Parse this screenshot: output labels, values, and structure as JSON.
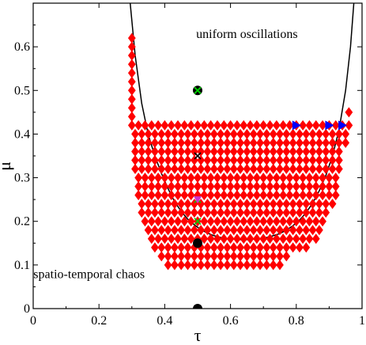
{
  "chart_data": {
    "type": "scatter",
    "title": "",
    "xlabel": "τ",
    "ylabel": "μ",
    "xlim": [
      0,
      1
    ],
    "ylim": [
      0,
      0.7
    ],
    "xticks": [
      0,
      0.2,
      0.4,
      0.6,
      0.8,
      1
    ],
    "xtick_labels": [
      "0",
      "0.2",
      "0.4",
      "0.6",
      "0.8",
      "1"
    ],
    "yticks": [
      0,
      0.1,
      0.2,
      0.3,
      0.4,
      0.5,
      0.6
    ],
    "ytick_labels": [
      "0",
      "0.1",
      "0.2",
      "0.3",
      "0.4",
      "0.5",
      "0.6"
    ],
    "grid": false,
    "annotations": [
      {
        "text": "uniform oscillations",
        "x": 0.65,
        "y": 0.62
      },
      {
        "text": "spatio-temporal chaos",
        "x": 0.17,
        "y": 0.07
      }
    ],
    "boundary": {
      "color": "#000000",
      "x": [
        0.295,
        0.31,
        0.33,
        0.35,
        0.37,
        0.39,
        0.41,
        0.43,
        0.45,
        0.47,
        0.49,
        0.51,
        0.53,
        0.55,
        0.57,
        0.59,
        0.61,
        0.63,
        0.65,
        0.67,
        0.69,
        0.71,
        0.73,
        0.75,
        0.77,
        0.79,
        0.81,
        0.83,
        0.85,
        0.87,
        0.89,
        0.91,
        0.93,
        0.95,
        0.965,
        0.975
      ],
      "y": [
        0.7,
        0.58,
        0.47,
        0.398,
        0.35,
        0.31,
        0.275,
        0.245,
        0.223,
        0.205,
        0.192,
        0.181,
        0.173,
        0.167,
        0.163,
        0.16,
        0.159,
        0.158,
        0.158,
        0.159,
        0.16,
        0.163,
        0.167,
        0.172,
        0.18,
        0.19,
        0.203,
        0.22,
        0.242,
        0.27,
        0.305,
        0.35,
        0.41,
        0.5,
        0.6,
        0.7
      ]
    },
    "series": [
      {
        "marker": "diamond",
        "color": "#ff0000",
        "rows": [
          {
            "y": 0.1,
            "x_from": 0.41,
            "x_to": 0.75
          },
          {
            "y": 0.12,
            "x_from": 0.39,
            "x_to": 0.78
          },
          {
            "y": 0.14,
            "x_from": 0.37,
            "x_to": 0.84
          },
          {
            "y": 0.16,
            "x_from": 0.36,
            "x_to": 0.86
          },
          {
            "y": 0.18,
            "x_from": 0.35,
            "x_to": 0.88
          },
          {
            "y": 0.2,
            "x_from": 0.34,
            "x_to": 0.89
          },
          {
            "y": 0.22,
            "x_from": 0.33,
            "x_to": 0.9
          },
          {
            "y": 0.24,
            "x_from": 0.33,
            "x_to": 0.91
          },
          {
            "y": 0.26,
            "x_from": 0.32,
            "x_to": 0.92
          },
          {
            "y": 0.28,
            "x_from": 0.32,
            "x_to": 0.93
          },
          {
            "y": 0.3,
            "x_from": 0.32,
            "x_to": 0.93
          },
          {
            "y": 0.32,
            "x_from": 0.31,
            "x_to": 0.93
          },
          {
            "y": 0.34,
            "x_from": 0.31,
            "x_to": 0.94
          },
          {
            "y": 0.36,
            "x_from": 0.31,
            "x_to": 0.94
          },
          {
            "y": 0.38,
            "x_from": 0.31,
            "x_to": 0.95
          },
          {
            "y": 0.4,
            "x_from": 0.31,
            "x_to": 0.95
          },
          {
            "y": 0.42,
            "x_from": 0.3,
            "x_to": 0.96
          },
          {
            "y": 0.44,
            "x_from": 0.3,
            "x_to": 0.3
          },
          {
            "y": 0.45,
            "x_from": 0.96,
            "x_to": 0.96
          },
          {
            "y": 0.46,
            "x_from": 0.3,
            "x_to": 0.3
          },
          {
            "y": 0.48,
            "x_from": 0.3,
            "x_to": 0.3
          },
          {
            "y": 0.5,
            "x_from": 0.3,
            "x_to": 0.3
          },
          {
            "y": 0.52,
            "x_from": 0.3,
            "x_to": 0.3
          },
          {
            "y": 0.54,
            "x_from": 0.3,
            "x_to": 0.3
          },
          {
            "y": 0.56,
            "x_from": 0.3,
            "x_to": 0.3
          },
          {
            "y": 0.58,
            "x_from": 0.3,
            "x_to": 0.3
          },
          {
            "y": 0.6,
            "x_from": 0.3,
            "x_to": 0.3
          },
          {
            "y": 0.62,
            "x_from": 0.3,
            "x_to": 0.3
          }
        ]
      },
      {
        "marker": "triangle-right",
        "color": "#0000ff",
        "points": [
          [
            0.8,
            0.42
          ],
          [
            0.9,
            0.42
          ],
          [
            0.94,
            0.42
          ]
        ]
      },
      {
        "marker": "circle",
        "color": "#000000",
        "points": [
          [
            0.5,
            0.0
          ],
          [
            0.5,
            0.15
          ]
        ]
      },
      {
        "marker": "cross",
        "color": "#000000",
        "points": [
          [
            0.5,
            0.35
          ]
        ]
      },
      {
        "marker": "cross",
        "color": "#00cc00",
        "points": [
          [
            0.5,
            0.2
          ],
          [
            0.5,
            0.25
          ]
        ]
      },
      {
        "marker": "triangle-down",
        "color": "#cc33cc",
        "points": [
          [
            0.5,
            0.25
          ]
        ]
      },
      {
        "marker": "circle-cross",
        "color": "#000000",
        "cross_color": "#00cc00",
        "points": [
          [
            0.5,
            0.5
          ]
        ]
      }
    ]
  }
}
